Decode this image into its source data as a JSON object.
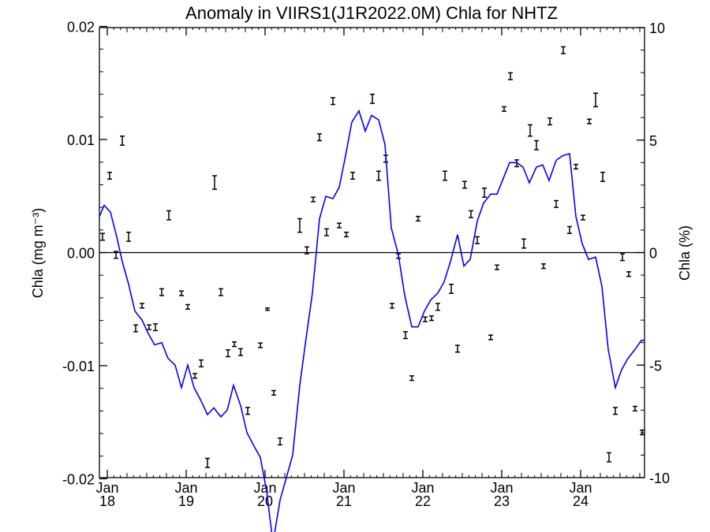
{
  "chart_data": {
    "type": "line",
    "title": "Anomaly in VIIRS1(J1R2022.0M) Chla for NHTZ",
    "ylabel_left": "Chla (mg m⁻³)",
    "ylabel_right": "Chla (%)",
    "ylim_left": [
      -0.0199,
      0.0199
    ],
    "ylim_right": [
      -10,
      10
    ],
    "yticks_left": [
      {
        "value": 0.02,
        "label": "0.02"
      },
      {
        "value": 0.01,
        "label": "0.01"
      },
      {
        "value": 0.0,
        "label": "0.00"
      },
      {
        "value": -0.01,
        "label": "-0.01"
      },
      {
        "value": -0.02,
        "label": "-0.02"
      }
    ],
    "yticks_right": [
      {
        "value": 10,
        "label": "10"
      },
      {
        "value": 5,
        "label": "5"
      },
      {
        "value": 0,
        "label": "0"
      },
      {
        "value": -5,
        "label": "-5"
      },
      {
        "value": -10,
        "label": "-10"
      }
    ],
    "xlim": [
      2017.9,
      2024.81
    ],
    "xticks": [
      {
        "value": 2018,
        "month": "Jan",
        "year": "18"
      },
      {
        "value": 2019,
        "month": "Jan",
        "year": "19"
      },
      {
        "value": 2020,
        "month": "Jan",
        "year": "20"
      },
      {
        "value": 2021,
        "month": "Jan",
        "year": "21"
      },
      {
        "value": 2022,
        "month": "Jan",
        "year": "22"
      },
      {
        "value": 2023,
        "month": "Jan",
        "year": "23"
      },
      {
        "value": 2024,
        "month": "Jan",
        "year": "24"
      }
    ],
    "zero_line": true,
    "series": [
      {
        "kind": "line",
        "axis": "right",
        "color": "#0000ff",
        "x": [
          2017.9,
          2017.96,
          2018.04,
          2018.12,
          2018.19,
          2018.27,
          2018.35,
          2018.44,
          2018.52,
          2018.6,
          2018.69,
          2018.77,
          2018.86,
          2018.94,
          2019.02,
          2019.1,
          2019.19,
          2019.27,
          2019.35,
          2019.44,
          2019.52,
          2019.6,
          2019.69,
          2019.77,
          2019.86,
          2019.94,
          2020.02,
          2020.1,
          2020.19,
          2020.27,
          2020.35,
          2020.44,
          2020.52,
          2020.6,
          2020.69,
          2020.77,
          2020.86,
          2020.94,
          2021.02,
          2021.1,
          2021.19,
          2021.27,
          2021.35,
          2021.44,
          2021.52,
          2021.6,
          2021.69,
          2021.77,
          2021.86,
          2021.94,
          2022.02,
          2022.1,
          2022.19,
          2022.27,
          2022.35,
          2022.44,
          2022.52,
          2022.6,
          2022.69,
          2022.77,
          2022.86,
          2022.94,
          2023.02,
          2023.1,
          2023.19,
          2023.27,
          2023.35,
          2023.44,
          2023.52,
          2023.6,
          2023.69,
          2023.77,
          2023.86,
          2023.94,
          2024.02,
          2024.1,
          2024.19,
          2024.27,
          2024.35,
          2024.44,
          2024.52,
          2024.6,
          2024.69,
          2024.77,
          2024.81
        ],
        "values": [
          1.6,
          2.1,
          1.8,
          0.7,
          -0.4,
          -1.4,
          -2.6,
          -3.0,
          -3.6,
          -4.1,
          -4.0,
          -4.7,
          -5.0,
          -6.0,
          -5.0,
          -6.0,
          -6.6,
          -7.2,
          -6.9,
          -7.3,
          -7.0,
          -5.9,
          -6.8,
          -8.0,
          -8.6,
          -9.1,
          -10.6,
          -12.9,
          -11.0,
          -10.0,
          -9.0,
          -5.9,
          -3.8,
          -1.8,
          1.5,
          2.5,
          2.4,
          2.9,
          4.3,
          5.8,
          6.3,
          5.4,
          6.1,
          5.9,
          4.8,
          1.1,
          -0.1,
          -1.9,
          -3.3,
          -3.3,
          -2.6,
          -2.1,
          -1.8,
          -1.3,
          -0.4,
          0.8,
          -0.6,
          -0.3,
          1.4,
          2.2,
          2.6,
          2.6,
          3.3,
          4.0,
          4.0,
          3.8,
          3.1,
          3.8,
          3.9,
          3.2,
          4.1,
          4.3,
          4.4,
          1.6,
          0.4,
          -0.3,
          -0.2,
          -1.5,
          -4.3,
          -6.0,
          -5.2,
          -4.7,
          -4.3,
          -3.9,
          -3.9
        ]
      },
      {
        "kind": "errorbar",
        "axis": "left",
        "color": "#000000",
        "points": [
          {
            "x": 2017.94,
            "y": 0.0014,
            "e": 0.0003
          },
          {
            "x": 2018.03,
            "y": 0.0068,
            "e": 0.0003
          },
          {
            "x": 2018.11,
            "y": -0.0002,
            "e": 0.0003
          },
          {
            "x": 2018.19,
            "y": 0.0099,
            "e": 0.0004
          },
          {
            "x": 2018.27,
            "y": 0.0014,
            "e": 0.0004
          },
          {
            "x": 2018.36,
            "y": -0.0067,
            "e": 0.0003
          },
          {
            "x": 2018.44,
            "y": -0.0047,
            "e": 0.0002
          },
          {
            "x": 2018.53,
            "y": -0.0066,
            "e": 0.0002
          },
          {
            "x": 2018.61,
            "y": -0.0066,
            "e": 0.0003
          },
          {
            "x": 2018.69,
            "y": -0.0035,
            "e": 0.0003
          },
          {
            "x": 2018.78,
            "y": 0.0033,
            "e": 0.0004
          },
          {
            "x": 2018.94,
            "y": -0.0036,
            "e": 0.0002
          },
          {
            "x": 2019.02,
            "y": -0.0048,
            "e": 0.0002
          },
          {
            "x": 2019.11,
            "y": -0.0109,
            "e": 0.0002
          },
          {
            "x": 2019.19,
            "y": -0.0098,
            "e": 0.0003
          },
          {
            "x": 2019.27,
            "y": -0.0186,
            "e": 0.0004
          },
          {
            "x": 2019.36,
            "y": 0.0062,
            "e": 0.0006
          },
          {
            "x": 2019.44,
            "y": -0.0035,
            "e": 0.0003
          },
          {
            "x": 2019.53,
            "y": -0.0089,
            "e": 0.0003
          },
          {
            "x": 2019.61,
            "y": -0.0081,
            "e": 0.0002
          },
          {
            "x": 2019.69,
            "y": -0.0088,
            "e": 0.0003
          },
          {
            "x": 2019.78,
            "y": -0.014,
            "e": 0.0003
          },
          {
            "x": 2019.94,
            "y": -0.0082,
            "e": 0.0002
          },
          {
            "x": 2020.03,
            "y": -0.005,
            "e": 0.0001
          },
          {
            "x": 2020.11,
            "y": -0.0124,
            "e": 0.0002
          },
          {
            "x": 2020.19,
            "y": -0.0167,
            "e": 0.0003
          },
          {
            "x": 2020.44,
            "y": 0.0024,
            "e": 0.0006
          },
          {
            "x": 2020.53,
            "y": 0.0002,
            "e": 0.0003
          },
          {
            "x": 2020.61,
            "y": 0.0047,
            "e": 0.0002
          },
          {
            "x": 2020.69,
            "y": 0.0102,
            "e": 0.0003
          },
          {
            "x": 2020.78,
            "y": 0.0018,
            "e": 0.0003
          },
          {
            "x": 2020.86,
            "y": 0.0134,
            "e": 0.0003
          },
          {
            "x": 2020.94,
            "y": 0.0024,
            "e": 0.0002
          },
          {
            "x": 2021.03,
            "y": 0.0016,
            "e": 0.0002
          },
          {
            "x": 2021.11,
            "y": 0.0068,
            "e": 0.0003
          },
          {
            "x": 2021.36,
            "y": 0.0136,
            "e": 0.0004
          },
          {
            "x": 2021.44,
            "y": 0.0068,
            "e": 0.0004
          },
          {
            "x": 2021.53,
            "y": 0.0083,
            "e": 0.0003
          },
          {
            "x": 2021.69,
            "y": -0.0003,
            "e": 0.0002
          },
          {
            "x": 2021.61,
            "y": -0.0047,
            "e": 0.0002
          },
          {
            "x": 2021.78,
            "y": -0.0073,
            "e": 0.0003
          },
          {
            "x": 2021.86,
            "y": -0.0111,
            "e": 0.0002
          },
          {
            "x": 2021.94,
            "y": 0.003,
            "e": 0.0002
          },
          {
            "x": 2022.03,
            "y": -0.0059,
            "e": 0.0002
          },
          {
            "x": 2022.11,
            "y": -0.0058,
            "e": 0.0002
          },
          {
            "x": 2022.19,
            "y": -0.0048,
            "e": 0.0003
          },
          {
            "x": 2022.28,
            "y": 0.0068,
            "e": 0.0004
          },
          {
            "x": 2022.36,
            "y": -0.0032,
            "e": 0.0004
          },
          {
            "x": 2022.44,
            "y": -0.0085,
            "e": 0.0003
          },
          {
            "x": 2022.53,
            "y": 0.006,
            "e": 0.0003
          },
          {
            "x": 2022.61,
            "y": 0.0034,
            "e": 0.0003
          },
          {
            "x": 2022.69,
            "y": 0.0011,
            "e": 0.0003
          },
          {
            "x": 2022.78,
            "y": 0.0053,
            "e": 0.0004
          },
          {
            "x": 2022.86,
            "y": -0.0075,
            "e": 0.0002
          },
          {
            "x": 2022.94,
            "y": -0.0013,
            "e": 0.0002
          },
          {
            "x": 2023.03,
            "y": 0.0127,
            "e": 0.0002
          },
          {
            "x": 2023.11,
            "y": 0.0156,
            "e": 0.0003
          },
          {
            "x": 2023.19,
            "y": 0.0079,
            "e": 0.0003
          },
          {
            "x": 2023.28,
            "y": 0.0008,
            "e": 0.0004
          },
          {
            "x": 2023.36,
            "y": 0.0108,
            "e": 0.0005
          },
          {
            "x": 2023.44,
            "y": 0.0095,
            "e": 0.0004
          },
          {
            "x": 2023.53,
            "y": -0.0012,
            "e": 0.0002
          },
          {
            "x": 2023.61,
            "y": 0.0116,
            "e": 0.0003
          },
          {
            "x": 2023.69,
            "y": 0.0043,
            "e": 0.0003
          },
          {
            "x": 2023.78,
            "y": 0.0179,
            "e": 0.0003
          },
          {
            "x": 2023.86,
            "y": 0.002,
            "e": 0.0003
          },
          {
            "x": 2023.94,
            "y": 0.0076,
            "e": 0.0002
          },
          {
            "x": 2024.03,
            "y": 0.0031,
            "e": 0.0002
          },
          {
            "x": 2024.11,
            "y": 0.0116,
            "e": 0.0002
          },
          {
            "x": 2024.19,
            "y": 0.0135,
            "e": 0.0006
          },
          {
            "x": 2024.28,
            "y": 0.0067,
            "e": 0.0004
          },
          {
            "x": 2024.36,
            "y": -0.0181,
            "e": 0.0004
          },
          {
            "x": 2024.44,
            "y": -0.014,
            "e": 0.0003
          },
          {
            "x": 2024.53,
            "y": -0.0004,
            "e": 0.0003
          },
          {
            "x": 2024.61,
            "y": -0.0019,
            "e": 0.0002
          },
          {
            "x": 2024.69,
            "y": -0.0138,
            "e": 0.0002
          },
          {
            "x": 2024.78,
            "y": -0.0159,
            "e": 0.0002
          }
        ]
      }
    ]
  }
}
